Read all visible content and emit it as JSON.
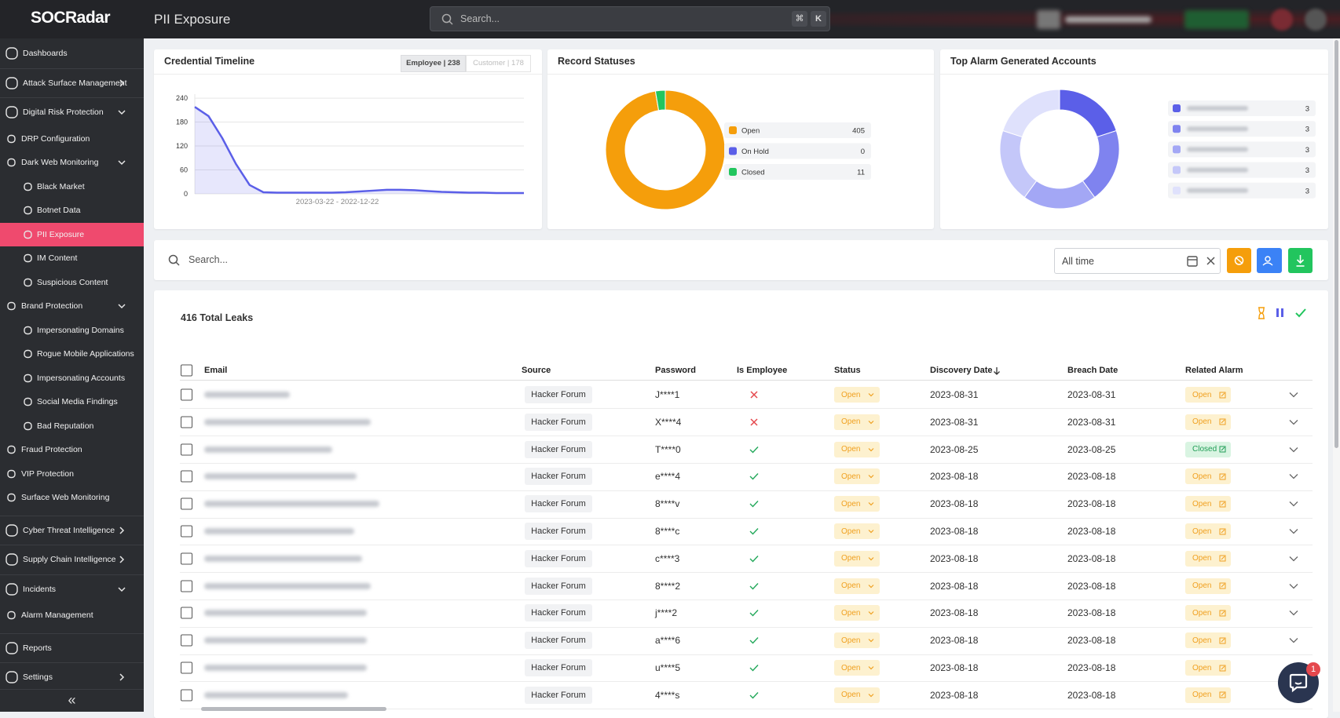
{
  "header": {
    "logo": "SOCRadar",
    "title": "PII Exposure",
    "search_placeholder": "Search...",
    "shortcut_keys": [
      "⌘",
      "K"
    ]
  },
  "sidebar": {
    "items": [
      {
        "label": "Dashboards",
        "level": 0
      },
      {
        "label": "Attack Surface Management",
        "level": 0,
        "chevron": "right"
      },
      {
        "label": "Digital Risk Protection",
        "level": 0,
        "chevron": "down"
      },
      {
        "label": "DRP Configuration",
        "level": 1
      },
      {
        "label": "Dark Web Monitoring",
        "level": 1,
        "chevron": "down"
      },
      {
        "label": "Black Market",
        "level": 2
      },
      {
        "label": "Botnet Data",
        "level": 2
      },
      {
        "label": "PII Exposure",
        "level": 2,
        "active": true
      },
      {
        "label": "IM Content",
        "level": 2
      },
      {
        "label": "Suspicious Content",
        "level": 2
      },
      {
        "label": "Brand Protection",
        "level": 1,
        "chevron": "down"
      },
      {
        "label": "Impersonating Domains",
        "level": 2
      },
      {
        "label": "Rogue Mobile Applications",
        "level": 2
      },
      {
        "label": "Impersonating Accounts",
        "level": 2
      },
      {
        "label": "Social Media Findings",
        "level": 2
      },
      {
        "label": "Bad Reputation",
        "level": 2
      },
      {
        "label": "Fraud Protection",
        "level": 1
      },
      {
        "label": "VIP Protection",
        "level": 1
      },
      {
        "label": "Surface Web Monitoring",
        "level": 1
      },
      {
        "label": "Cyber Threat Intelligence",
        "level": 0,
        "chevron": "right"
      },
      {
        "label": "Supply Chain Intelligence",
        "level": 0,
        "chevron": "right"
      },
      {
        "label": "Incidents",
        "level": 0,
        "chevron": "down"
      },
      {
        "label": "Alarm Management",
        "level": 1
      },
      {
        "label": "Reports",
        "level": 0
      },
      {
        "label": "Settings",
        "level": 0,
        "chevron": "right"
      }
    ],
    "collapse": "«"
  },
  "chart_data": [
    {
      "type": "line",
      "title": "Credential Timeline",
      "tabs": [
        "Employee | 238",
        "Customer | 178"
      ],
      "xlabel": "2023-03-22 - 2022-12-22",
      "categories": [
        null,
        null,
        null,
        null,
        null,
        null,
        null,
        null,
        null,
        null,
        null,
        null,
        null,
        null,
        null,
        null,
        null,
        null,
        null,
        null,
        null,
        null,
        null,
        null,
        null
      ],
      "values": [
        218,
        195,
        140,
        75,
        22,
        4,
        3,
        3,
        3,
        3,
        3,
        4,
        6,
        8,
        10,
        10,
        9,
        7,
        5,
        4,
        3,
        3,
        2,
        2,
        2
      ],
      "color": "#5b5fe8",
      "area": true,
      "ylim": [
        0,
        250
      ],
      "yticks": [
        0,
        60,
        120,
        180,
        240
      ],
      "grid": true
    },
    {
      "type": "pie",
      "title": "Record Statuses",
      "donut": true,
      "categories": [
        "Open",
        "On Hold",
        "Closed"
      ],
      "values": [
        405,
        0,
        11
      ],
      "colors": [
        "#f59e0b",
        "#5b5fe8",
        "#22c55e"
      ]
    },
    {
      "type": "pie",
      "title": "Top Alarm Generated Accounts",
      "donut": true,
      "categories": [
        null,
        null,
        null,
        null,
        null
      ],
      "values": [
        3,
        3,
        3,
        3,
        3
      ],
      "colors": [
        "#5b5fe8",
        "#7f83ef",
        "#a3a7f5",
        "#c4c7f9",
        "#dfe1fc"
      ]
    }
  ],
  "filters": {
    "search_placeholder": "Search...",
    "date_range": "All time"
  },
  "table": {
    "total": "416 Total Leaks",
    "columns": [
      "Email",
      "Source",
      "Password",
      "Is Employee",
      "Status",
      "Discovery Date",
      "Breach Date",
      "Related Alarm"
    ],
    "pill_colors": {
      "Open": {
        "text": "#f0a020",
        "bg": "#fdf1cf"
      },
      "Closed": {
        "text": "#1f9d55",
        "bg": "#d9f4e2"
      }
    },
    "rows": [
      {
        "source": "Hacker Forum",
        "password": "J****1",
        "is_employee": false,
        "status": "Open",
        "discovery_date": "2023-08-31",
        "breach_date": "2023-08-31",
        "related_alarm": "Open"
      },
      {
        "source": "Hacker Forum",
        "password": "X****4",
        "is_employee": false,
        "status": "Open",
        "discovery_date": "2023-08-31",
        "breach_date": "2023-08-31",
        "related_alarm": "Open"
      },
      {
        "source": "Hacker Forum",
        "password": "T****0",
        "is_employee": true,
        "status": "Open",
        "discovery_date": "2023-08-25",
        "breach_date": "2023-08-25",
        "related_alarm": "Closed"
      },
      {
        "source": "Hacker Forum",
        "password": "e****4",
        "is_employee": true,
        "status": "Open",
        "discovery_date": "2023-08-18",
        "breach_date": "2023-08-18",
        "related_alarm": "Open"
      },
      {
        "source": "Hacker Forum",
        "password": "8****v",
        "is_employee": true,
        "status": "Open",
        "discovery_date": "2023-08-18",
        "breach_date": "2023-08-18",
        "related_alarm": "Open"
      },
      {
        "source": "Hacker Forum",
        "password": "8****c",
        "is_employee": true,
        "status": "Open",
        "discovery_date": "2023-08-18",
        "breach_date": "2023-08-18",
        "related_alarm": "Open"
      },
      {
        "source": "Hacker Forum",
        "password": "c****3",
        "is_employee": true,
        "status": "Open",
        "discovery_date": "2023-08-18",
        "breach_date": "2023-08-18",
        "related_alarm": "Open"
      },
      {
        "source": "Hacker Forum",
        "password": "8****2",
        "is_employee": true,
        "status": "Open",
        "discovery_date": "2023-08-18",
        "breach_date": "2023-08-18",
        "related_alarm": "Open"
      },
      {
        "source": "Hacker Forum",
        "password": "j****2",
        "is_employee": true,
        "status": "Open",
        "discovery_date": "2023-08-18",
        "breach_date": "2023-08-18",
        "related_alarm": "Open"
      },
      {
        "source": "Hacker Forum",
        "password": "a****6",
        "is_employee": true,
        "status": "Open",
        "discovery_date": "2023-08-18",
        "breach_date": "2023-08-18",
        "related_alarm": "Open"
      },
      {
        "source": "Hacker Forum",
        "password": "u****5",
        "is_employee": true,
        "status": "Open",
        "discovery_date": "2023-08-18",
        "breach_date": "2023-08-18",
        "related_alarm": "Open"
      },
      {
        "source": "Hacker Forum",
        "password": "4****s",
        "is_employee": true,
        "status": "Open",
        "discovery_date": "2023-08-18",
        "breach_date": "2023-08-18",
        "related_alarm": "Open"
      }
    ]
  },
  "notifications": 1
}
